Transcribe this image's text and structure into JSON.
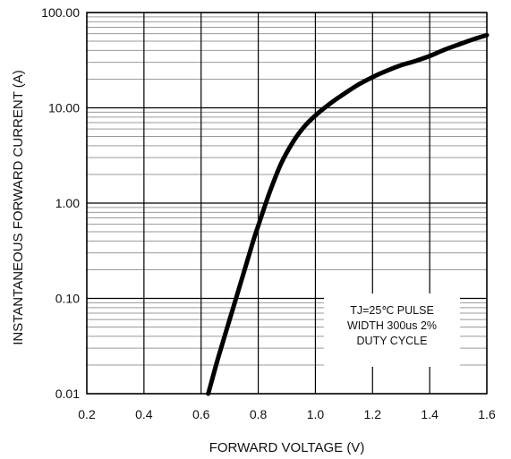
{
  "chart_data": {
    "type": "line",
    "xlabel": "FORWARD VOLTAGE (V)",
    "ylabel": "INSTANTANEOUS FORWARD CURRENT (A)",
    "xlim": [
      0.2,
      1.6
    ],
    "ylim": [
      0.01,
      100
    ],
    "y_scale": "log",
    "grid": true,
    "x_ticks": [
      "0.2",
      "0.4",
      "0.6",
      "0.8",
      "1.0",
      "1.2",
      "1.4",
      "1.6"
    ],
    "y_ticks": [
      "0.01",
      "0.10",
      "1.00",
      "10.00",
      "100.00"
    ],
    "annotation": [
      "TJ=25℃ PULSE",
      "WIDTH 300us 2%",
      "DUTY CYCLE"
    ],
    "series": [
      {
        "x": [
          0.625,
          0.66,
          0.7,
          0.74,
          0.78,
          0.8,
          0.84,
          0.88,
          0.92,
          0.96,
          1.0,
          1.05,
          1.1,
          1.15,
          1.2,
          1.25,
          1.3,
          1.35,
          1.4,
          1.45,
          1.5,
          1.55,
          1.6
        ],
        "y": [
          0.01,
          0.024,
          0.06,
          0.15,
          0.38,
          0.58,
          1.3,
          2.6,
          4.3,
          6.3,
          8.3,
          11.0,
          14.0,
          17.5,
          21.0,
          24.5,
          28.0,
          31.0,
          35.0,
          40.5,
          46.0,
          52.0,
          58.0
        ]
      }
    ]
  }
}
